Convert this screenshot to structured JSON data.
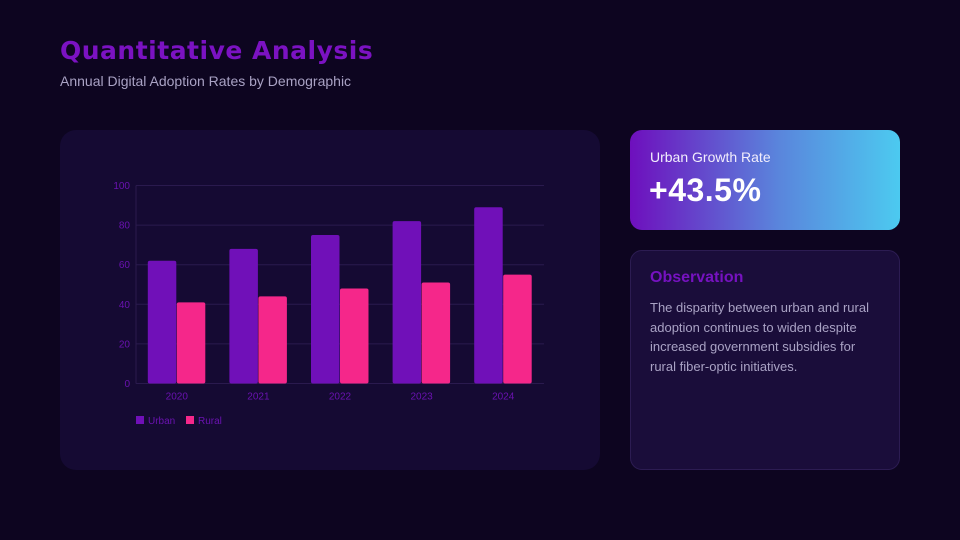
{
  "header": {
    "title": "Quantitative Analysis",
    "subtitle": "Annual Digital Adoption Rates by Demographic"
  },
  "kpi": {
    "label": "Urban Growth Rate",
    "value": "+43.5%"
  },
  "observation": {
    "title": "Observation",
    "text": "The disparity between urban and rural adoption continues to widen despite increased government subsidies for rural fiber-optic initiatives."
  },
  "colors": {
    "background": "#0d0520",
    "card": "#150a33",
    "urban": "#7010b8",
    "rural": "#f5278a",
    "axis_text": "#6a12b0",
    "grid": "#2a1a4e"
  },
  "chart_data": {
    "type": "bar",
    "title": "",
    "xlabel": "",
    "ylabel": "",
    "categories": [
      "2020",
      "2021",
      "2022",
      "2023",
      "2024"
    ],
    "series": [
      {
        "name": "Urban",
        "color": "#7010b8",
        "values": [
          62,
          68,
          75,
          82,
          89
        ]
      },
      {
        "name": "Rural",
        "color": "#f5278a",
        "values": [
          41,
          44,
          48,
          51,
          55
        ]
      }
    ],
    "ylim": [
      0,
      100
    ],
    "yticks": [
      0,
      20,
      40,
      60,
      80,
      100
    ],
    "grid": true,
    "legend_position": "bottom-left"
  }
}
